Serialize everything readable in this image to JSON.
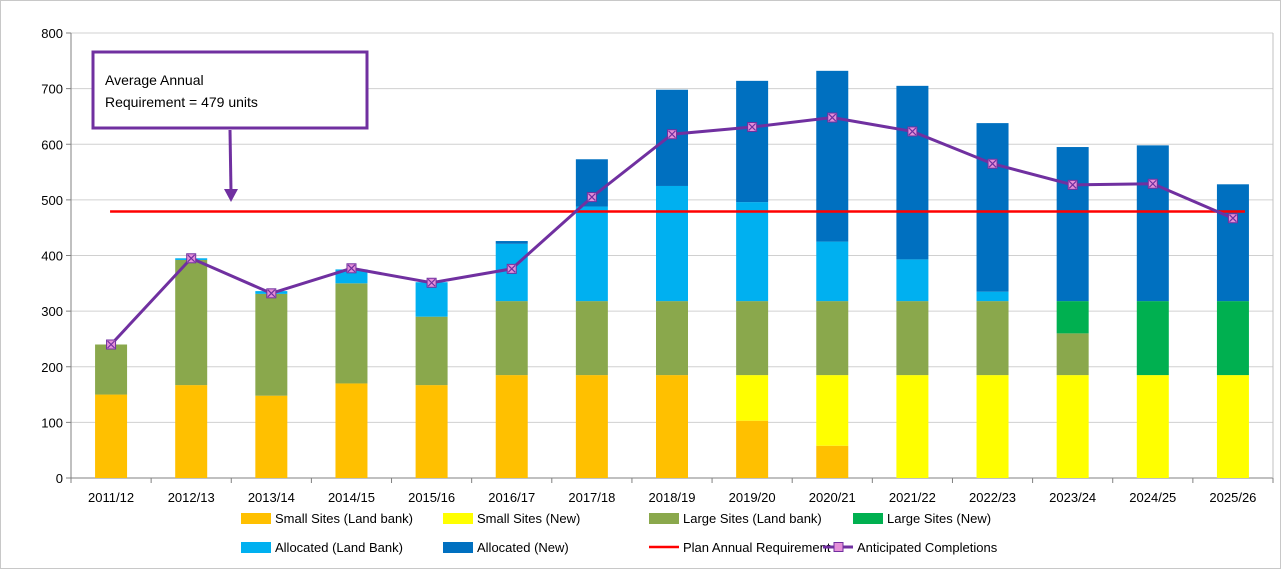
{
  "chart_data": {
    "type": "bar",
    "stacked": true,
    "categories": [
      "2011/12",
      "2012/13",
      "2013/14",
      "2014/15",
      "2015/16",
      "2016/17",
      "2017/18",
      "2018/19",
      "2019/20",
      "2020/21",
      "2021/22",
      "2022/23",
      "2023/24",
      "2024/25",
      "2025/26"
    ],
    "ylim": [
      0,
      800
    ],
    "yticks": [
      0,
      100,
      200,
      300,
      400,
      500,
      600,
      700,
      800
    ],
    "grid": true,
    "legend_position": "bottom",
    "series": [
      {
        "name": "Small Sites (Land bank)",
        "color": "#ffc000",
        "kind": "bar",
        "values": [
          150,
          167,
          148,
          170,
          167,
          185,
          185,
          185,
          103,
          58,
          0,
          0,
          0,
          0,
          0
        ]
      },
      {
        "name": "Small Sites (New)",
        "color": "#ffff00",
        "kind": "bar",
        "values": [
          0,
          0,
          0,
          0,
          0,
          0,
          0,
          0,
          82,
          127,
          185,
          185,
          185,
          185,
          185
        ]
      },
      {
        "name": "Large Sites (Land bank)",
        "color": "#8aa84c",
        "kind": "bar",
        "values": [
          90,
          225,
          183,
          180,
          123,
          133,
          133,
          133,
          133,
          133,
          133,
          133,
          75,
          0,
          0
        ]
      },
      {
        "name": "Large Sites (New)",
        "color": "#00b050",
        "kind": "bar",
        "values": [
          0,
          0,
          0,
          0,
          0,
          0,
          0,
          0,
          0,
          0,
          0,
          0,
          58,
          133,
          133
        ]
      },
      {
        "name": "Allocated (Land Bank)",
        "color": "#00b0f0",
        "kind": "bar",
        "values": [
          0,
          3,
          5,
          25,
          62,
          103,
          170,
          207,
          178,
          107,
          75,
          17,
          0,
          0,
          0
        ]
      },
      {
        "name": "Allocated (New)",
        "color": "#0070c0",
        "kind": "bar",
        "values": [
          0,
          0,
          0,
          0,
          0,
          5,
          85,
          173,
          218,
          307,
          312,
          303,
          277,
          280,
          210
        ]
      },
      {
        "name": "Plan Annual Requirement",
        "color": "#ff0000",
        "kind": "line",
        "values": [
          479,
          479,
          479,
          479,
          479,
          479,
          479,
          479,
          479,
          479,
          479,
          479,
          479,
          479,
          479
        ]
      },
      {
        "name": "Anticipated Completions",
        "color": "#7030a0",
        "kind": "line-marker",
        "values": [
          240,
          395,
          332,
          377,
          351,
          376,
          505,
          618,
          631,
          648,
          623,
          565,
          527,
          529,
          467
        ]
      }
    ],
    "annotation": {
      "line1": "Average Annual",
      "line2": "Requirement  = 479 units"
    }
  }
}
